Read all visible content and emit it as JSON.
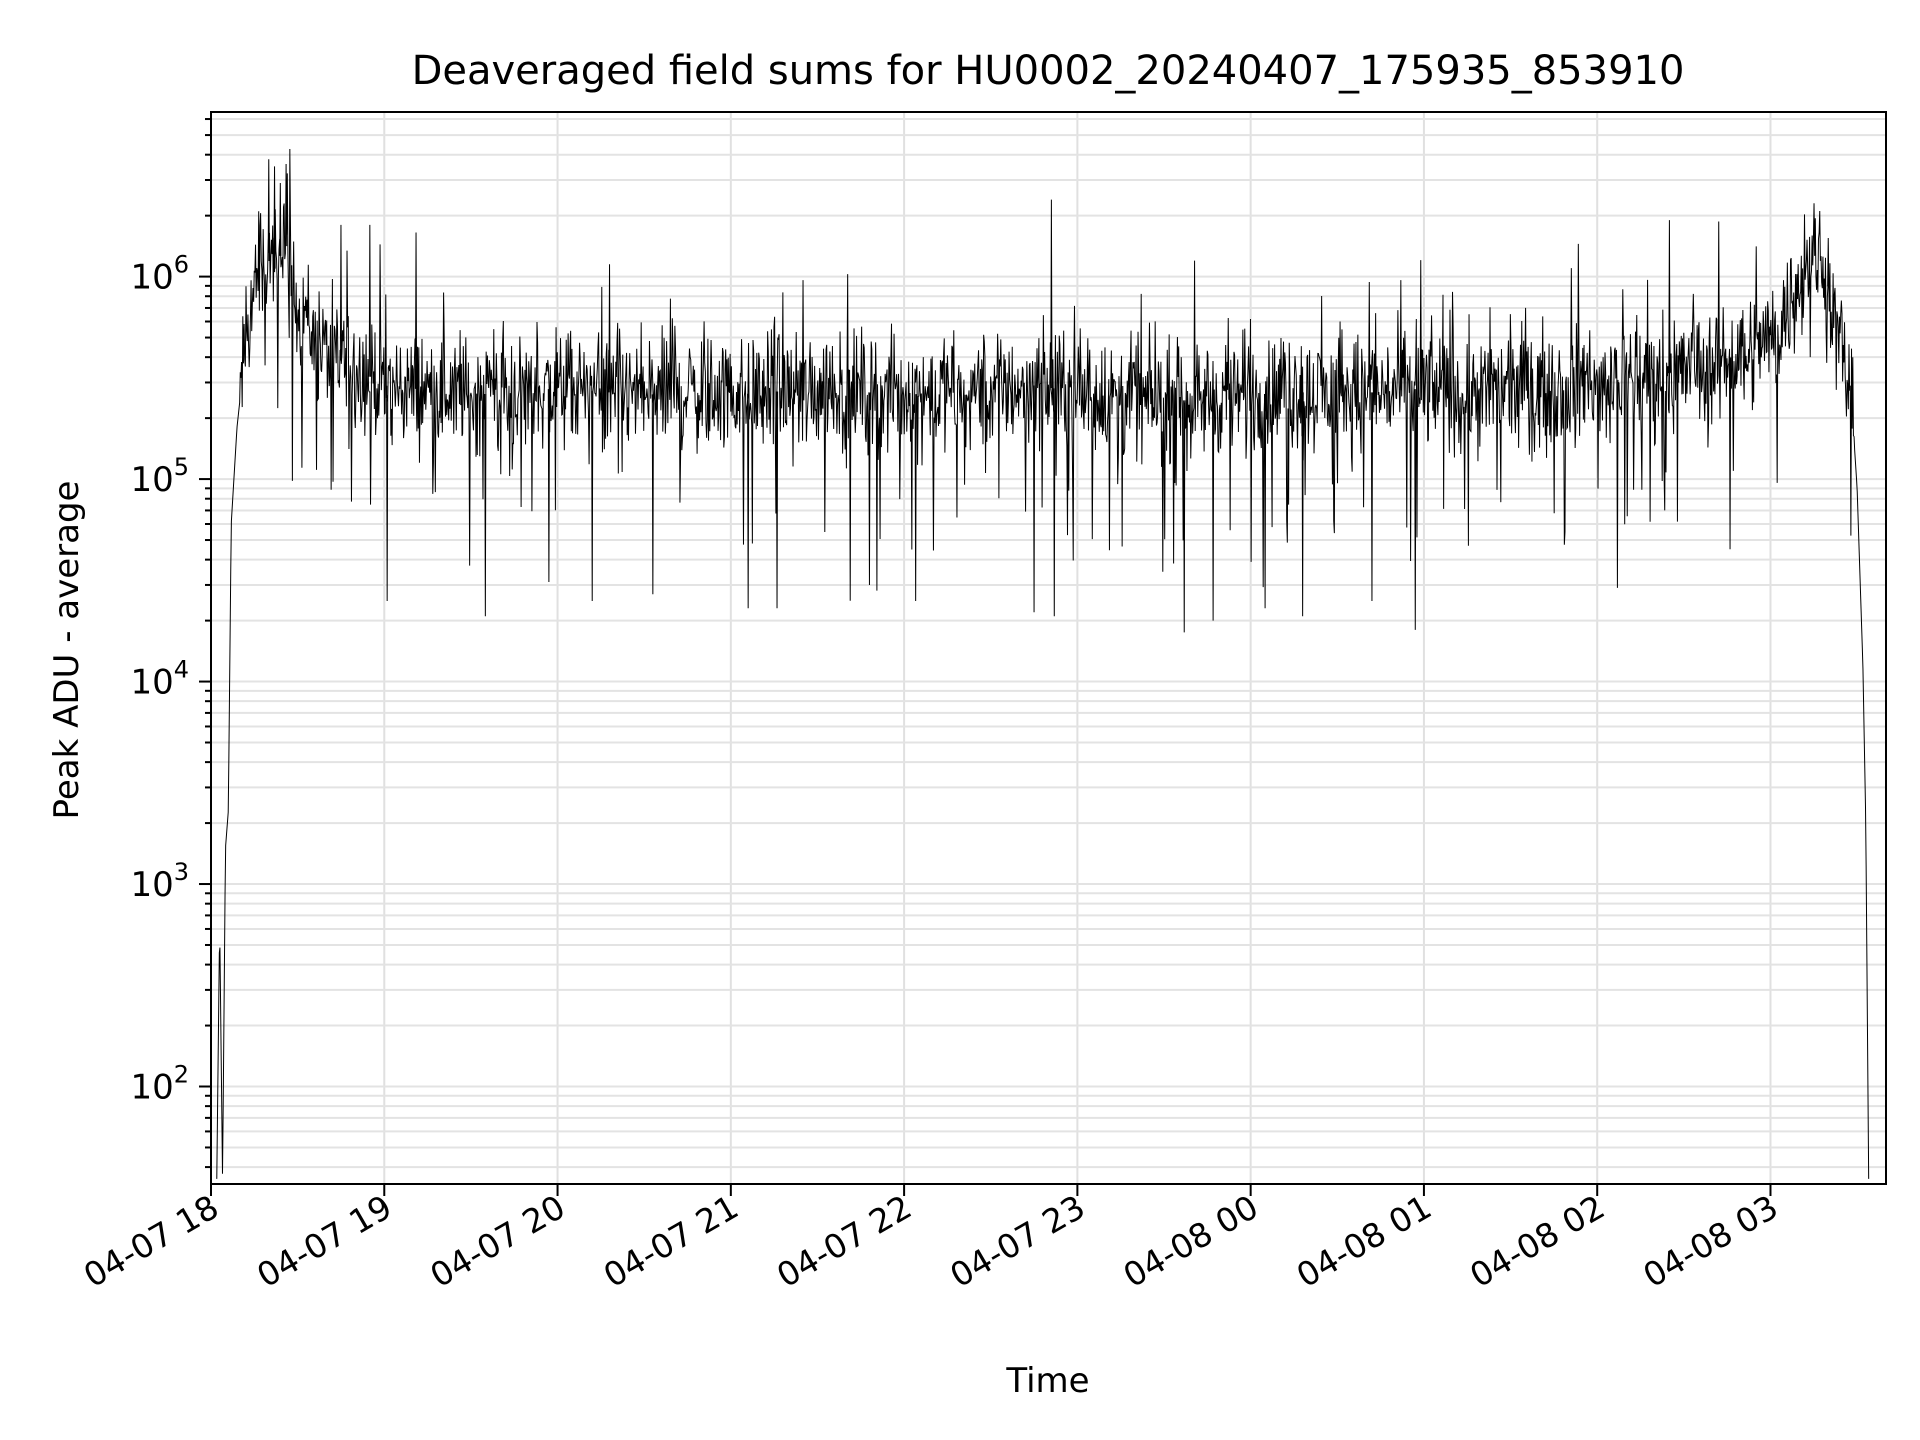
{
  "chart_data": {
    "type": "line",
    "title": "Deaveraged field sums for HU0002_20240407_175935_853910",
    "xlabel": "Time",
    "ylabel": "Peak ADU - average",
    "yscale": "log",
    "xlim": [
      "2024-04-07 18:00",
      "2024-04-08 03:40"
    ],
    "ylim": [
      33,
      6500000
    ],
    "grid": "major and minor, light gray",
    "line_color": "#000000",
    "x_ticks": [
      {
        "time": "2024-04-07 18:00",
        "label": "04-07 18"
      },
      {
        "time": "2024-04-07 19:00",
        "label": "04-07 19"
      },
      {
        "time": "2024-04-07 20:00",
        "label": "04-07 20"
      },
      {
        "time": "2024-04-07 21:00",
        "label": "04-07 21"
      },
      {
        "time": "2024-04-07 22:00",
        "label": "04-07 22"
      },
      {
        "time": "2024-04-07 23:00",
        "label": "04-07 23"
      },
      {
        "time": "2024-04-08 00:00",
        "label": "04-08 00"
      },
      {
        "time": "2024-04-08 01:00",
        "label": "04-08 01"
      },
      {
        "time": "2024-04-08 02:00",
        "label": "04-08 02"
      },
      {
        "time": "2024-04-08 03:00",
        "label": "04-08 03"
      }
    ],
    "y_ticks": [
      {
        "value": 100,
        "base": "10",
        "exp": "2"
      },
      {
        "value": 1000,
        "base": "10",
        "exp": "3"
      },
      {
        "value": 10000,
        "base": "10",
        "exp": "4"
      },
      {
        "value": 100000,
        "base": "10",
        "exp": "5"
      },
      {
        "value": 1000000,
        "base": "10",
        "exp": "6"
      }
    ],
    "series": [
      {
        "points": [
          [
            "2024-04-07 18:02",
            35
          ],
          [
            "2024-04-07 18:03",
            650
          ],
          [
            "2024-04-07 18:04",
            35
          ],
          [
            "2024-04-07 18:05",
            1500
          ],
          [
            "2024-04-07 18:06",
            2300
          ],
          [
            "2024-04-07 18:07",
            60000
          ],
          [
            "2024-04-07 18:09",
            180000
          ],
          [
            "2024-04-07 18:12",
            450000
          ],
          [
            "2024-04-07 18:15",
            900000
          ],
          [
            "2024-04-07 18:17",
            1300000
          ],
          [
            "2024-04-07 18:19",
            950000
          ],
          [
            "2024-04-07 18:21",
            1500000
          ],
          [
            "2024-04-07 18:23",
            800000
          ],
          [
            "2024-04-07 18:25",
            2000000
          ],
          [
            "2024-04-07 18:27",
            1000000
          ],
          [
            "2024-04-07 18:29",
            800000
          ],
          [
            "2024-04-07 18:31",
            650000
          ],
          [
            "2024-04-07 18:33",
            700000
          ],
          [
            "2024-04-07 18:35",
            500000
          ],
          [
            "2024-04-07 18:38",
            450000
          ],
          [
            "2024-04-07 18:42",
            400000
          ],
          [
            "2024-04-07 18:46",
            380000
          ],
          [
            "2024-04-07 18:50",
            360000
          ],
          [
            "2024-04-07 18:55",
            320000
          ],
          [
            "2024-04-07 19:00",
            290000
          ],
          [
            "2024-04-07 19:10",
            280000
          ],
          [
            "2024-04-07 19:20",
            270000
          ],
          [
            "2024-04-07 19:30",
            260000
          ],
          [
            "2024-04-07 19:45",
            270000
          ],
          [
            "2024-04-07 20:00",
            280000
          ],
          [
            "2024-04-07 20:15",
            270000
          ],
          [
            "2024-04-07 20:30",
            260000
          ],
          [
            "2024-04-07 20:45",
            270000
          ],
          [
            "2024-04-07 21:00",
            260000
          ],
          [
            "2024-04-07 21:15",
            270000
          ],
          [
            "2024-04-07 21:30",
            280000
          ],
          [
            "2024-04-07 21:45",
            270000
          ],
          [
            "2024-04-07 22:00",
            260000
          ],
          [
            "2024-04-07 22:15",
            270000
          ],
          [
            "2024-04-07 22:30",
            280000
          ],
          [
            "2024-04-07 22:45",
            290000
          ],
          [
            "2024-04-07 23:00",
            270000
          ],
          [
            "2024-04-07 23:15",
            250000
          ],
          [
            "2024-04-07 23:30",
            240000
          ],
          [
            "2024-04-07 23:45",
            250000
          ],
          [
            "2024-04-08 00:00",
            260000
          ],
          [
            "2024-04-08 00:15",
            270000
          ],
          [
            "2024-04-08 00:30",
            260000
          ],
          [
            "2024-04-08 00:45",
            270000
          ],
          [
            "2024-04-08 01:00",
            280000
          ],
          [
            "2024-04-08 01:15",
            270000
          ],
          [
            "2024-04-08 01:30",
            280000
          ],
          [
            "2024-04-08 01:45",
            290000
          ],
          [
            "2024-04-08 02:00",
            300000
          ],
          [
            "2024-04-08 02:15",
            320000
          ],
          [
            "2024-04-08 02:30",
            340000
          ],
          [
            "2024-04-08 02:40",
            370000
          ],
          [
            "2024-04-08 02:50",
            420000
          ],
          [
            "2024-04-08 03:00",
            500000
          ],
          [
            "2024-04-08 03:05",
            650000
          ],
          [
            "2024-04-08 03:10",
            900000
          ],
          [
            "2024-04-08 03:13",
            1100000
          ],
          [
            "2024-04-08 03:16",
            1200000
          ],
          [
            "2024-04-08 03:19",
            1050000
          ],
          [
            "2024-04-08 03:22",
            650000
          ],
          [
            "2024-04-08 03:25",
            400000
          ],
          [
            "2024-04-08 03:28",
            250000
          ],
          [
            "2024-04-08 03:30",
            90000
          ],
          [
            "2024-04-08 03:32",
            12000
          ],
          [
            "2024-04-08 03:33",
            2000
          ],
          [
            "2024-04-08 03:34",
            35
          ]
        ],
        "spikes": [
          [
            "2024-04-07 18:20",
            3800000
          ],
          [
            "2024-04-07 18:22",
            3500000
          ],
          [
            "2024-04-07 18:26",
            3600000
          ],
          [
            "2024-04-07 18:24",
            2900000
          ],
          [
            "2024-04-07 18:45",
            1800000
          ],
          [
            "2024-04-07 18:55",
            1800000
          ],
          [
            "2024-04-07 19:11",
            1650000
          ],
          [
            "2024-04-07 20:18",
            1150000
          ],
          [
            "2024-04-07 21:25",
            960000
          ],
          [
            "2024-04-07 22:51",
            2400000
          ],
          [
            "2024-04-08 00:52",
            960000
          ],
          [
            "2024-04-08 02:25",
            1900000
          ],
          [
            "2024-04-08 03:20",
            1550000
          ]
        ],
        "dips": [
          [
            "2024-04-07 19:01",
            25000
          ],
          [
            "2024-04-07 19:35",
            21000
          ],
          [
            "2024-04-07 19:57",
            31000
          ],
          [
            "2024-04-07 20:12",
            25000
          ],
          [
            "2024-04-07 20:33",
            27000
          ],
          [
            "2024-04-07 21:06",
            23000
          ],
          [
            "2024-04-07 21:16",
            23000
          ],
          [
            "2024-04-07 21:48",
            30000
          ],
          [
            "2024-04-07 22:04",
            25000
          ],
          [
            "2024-04-07 22:45",
            22000
          ],
          [
            "2024-04-07 22:52",
            21000
          ],
          [
            "2024-04-07 23:37",
            17500
          ],
          [
            "2024-04-07 23:47",
            20000
          ],
          [
            "2024-04-08 00:05",
            23000
          ],
          [
            "2024-04-08 00:18",
            21000
          ],
          [
            "2024-04-08 00:42",
            25000
          ],
          [
            "2024-04-08 00:57",
            18000
          ],
          [
            "2024-04-08 02:07",
            29000
          ],
          [
            "2024-04-08 02:46",
            45000
          ]
        ]
      }
    ]
  }
}
